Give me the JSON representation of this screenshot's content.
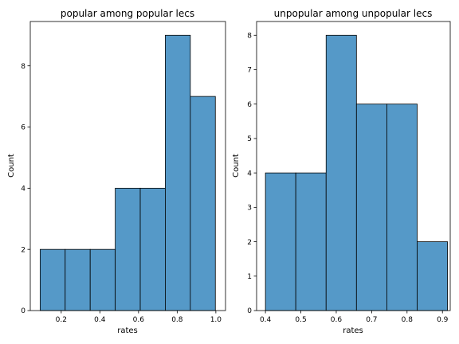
{
  "chart_data": [
    {
      "type": "bar",
      "title": "popular among popular lecs",
      "xlabel": "rates",
      "ylabel": "Count",
      "xlim": [
        0.04,
        1.05
      ],
      "ylim": [
        0,
        9.45
      ],
      "xticks": [
        "0.2",
        "0.4",
        "0.6",
        "0.8",
        "1.0"
      ],
      "yticks": [
        "0",
        "2",
        "4",
        "6",
        "8"
      ],
      "bin_edges": [
        0.091,
        0.2205,
        0.35,
        0.4795,
        0.609,
        0.7385,
        0.868,
        0.9975
      ],
      "values": [
        2,
        2,
        2,
        4,
        4,
        9,
        7
      ],
      "bar_color": "#5599c8",
      "edge_color": "#000000"
    },
    {
      "type": "bar",
      "title": "unpopular among unpopular lecs",
      "xlabel": "rates",
      "ylabel": "Count",
      "xlim": [
        0.375,
        0.922
      ],
      "ylim": [
        0,
        8.4
      ],
      "xticks": [
        "0.4",
        "0.5",
        "0.6",
        "0.7",
        "0.8",
        "0.9"
      ],
      "yticks": [
        "0",
        "1",
        "2",
        "3",
        "4",
        "5",
        "6",
        "7",
        "8"
      ],
      "bin_edges": [
        0.4,
        0.4857,
        0.5714,
        0.6571,
        0.7429,
        0.8286,
        0.9143
      ],
      "values": [
        4,
        4,
        8,
        6,
        6,
        2
      ],
      "bar_color": "#5599c8",
      "edge_color": "#000000"
    }
  ]
}
